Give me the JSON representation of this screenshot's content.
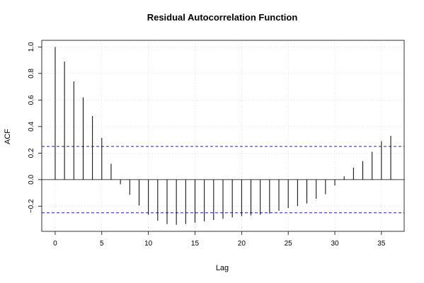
{
  "chart_data": {
    "type": "bar",
    "title": "Residual Autocorrelation Function",
    "xlabel": "Lag",
    "ylabel": "ACF",
    "x": [
      0,
      1,
      2,
      3,
      4,
      5,
      6,
      7,
      8,
      9,
      10,
      11,
      12,
      13,
      14,
      15,
      16,
      17,
      18,
      19,
      20,
      21,
      22,
      23,
      24,
      25,
      26,
      27,
      28,
      29,
      30,
      31,
      32,
      33,
      34,
      35,
      36
    ],
    "values": [
      1.0,
      0.89,
      0.74,
      0.62,
      0.48,
      0.315,
      0.12,
      -0.035,
      -0.115,
      -0.195,
      -0.265,
      -0.31,
      -0.335,
      -0.34,
      -0.335,
      -0.325,
      -0.315,
      -0.305,
      -0.295,
      -0.285,
      -0.275,
      -0.27,
      -0.265,
      -0.255,
      -0.235,
      -0.215,
      -0.2,
      -0.18,
      -0.145,
      -0.11,
      -0.045,
      0.025,
      0.09,
      0.14,
      0.21,
      0.29,
      0.33
    ],
    "confidence_bounds": [
      0.25,
      -0.25
    ],
    "xlim": [
      -1.44,
      37.44
    ],
    "ylim": [
      -0.39,
      1.05
    ],
    "xticks": [
      0,
      5,
      10,
      15,
      20,
      25,
      30,
      35
    ],
    "yticks": [
      -0.2,
      0.0,
      0.2,
      0.4,
      0.6,
      0.8,
      1.0
    ],
    "ytick_labels": [
      "−0.2",
      "0.0",
      "0.2",
      "0.4",
      "0.6",
      "0.8",
      "1.0"
    ],
    "grid": true,
    "colors": {
      "bars": "#000000",
      "bounds": "#1f1fb0",
      "grid": "#d8d8d8",
      "zero_line": "#000000"
    }
  }
}
